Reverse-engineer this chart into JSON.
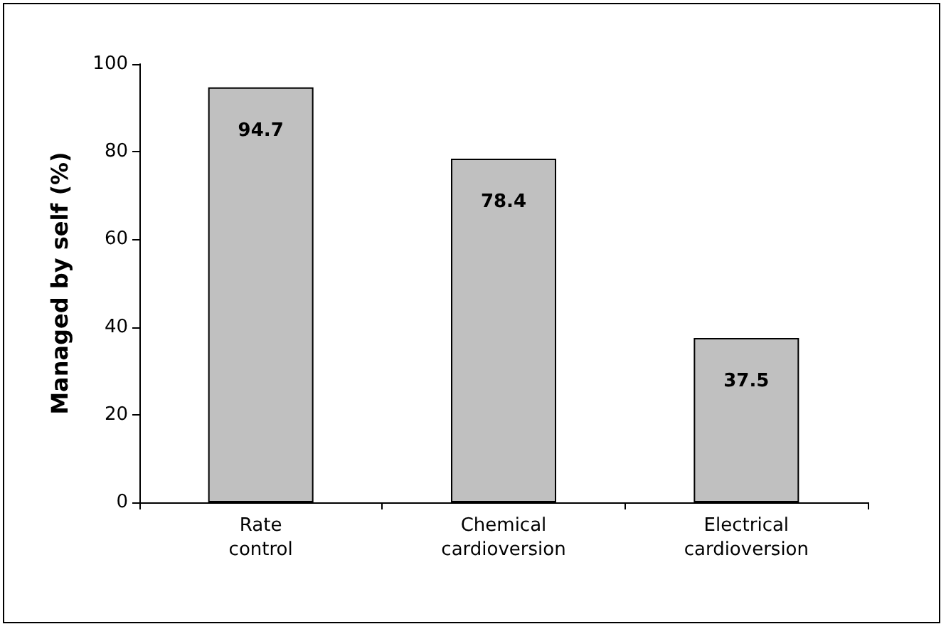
{
  "chart_data": {
    "type": "bar",
    "ylabel": "Managed by self (%)",
    "categories": [
      "Rate\ncontrol",
      "Chemical\ncardioversion",
      "Electrical\ncardioversion"
    ],
    "values": [
      94.7,
      78.4,
      37.5
    ],
    "color": "#c0c0c0",
    "ylim": [
      0,
      100
    ],
    "yticks": [
      0,
      20,
      40,
      60,
      80,
      100
    ],
    "grid": false,
    "data_labels": true
  }
}
